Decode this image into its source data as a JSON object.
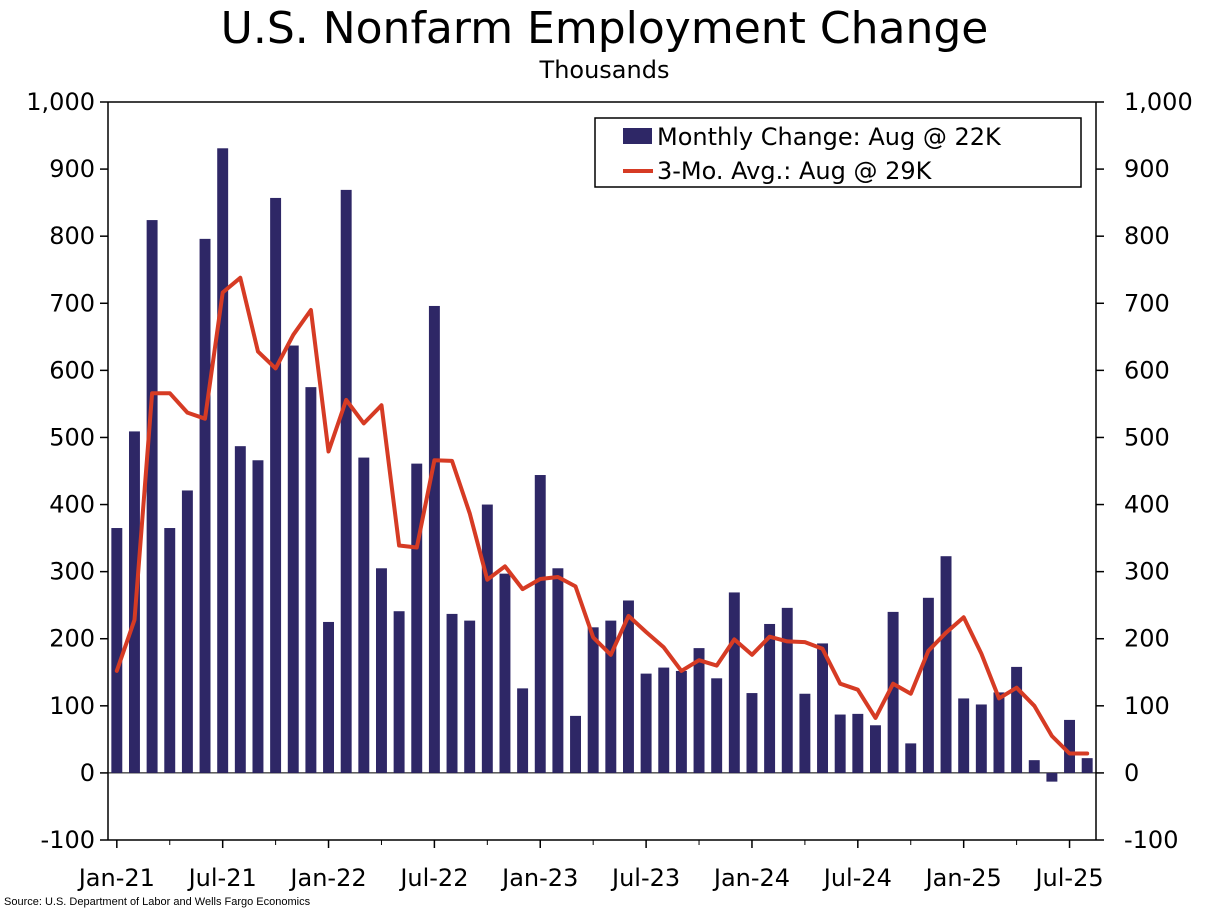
{
  "chart_data": {
    "type": "bar",
    "title": "U.S. Nonfarm Employment Change",
    "subtitle": "Thousands",
    "source": "Source: U.S. Department of Labor and Wells Fargo Economics",
    "ylim": [
      -100,
      1000
    ],
    "yticks": [
      "-100",
      "0",
      "100",
      "200",
      "300",
      "400",
      "500",
      "600",
      "700",
      "800",
      "900",
      "1,000"
    ],
    "ytick_values": [
      -100,
      0,
      100,
      200,
      300,
      400,
      500,
      600,
      700,
      800,
      900,
      1000
    ],
    "xtick_labels": [
      "Jan-21",
      "Jul-21",
      "Jan-22",
      "Jul-22",
      "Jan-23",
      "Jul-23",
      "Jan-24",
      "Jul-24",
      "Jan-25",
      "Jul-25"
    ],
    "xtick_categories": [
      "Jan-21",
      "Jul-21",
      "Jan-22",
      "Jul-22",
      "Jan-23",
      "Jul-23",
      "Jan-24",
      "Jul-24",
      "Jan-25",
      "Jul-25"
    ],
    "categories": [
      "Jan-21",
      "Feb-21",
      "Mar-21",
      "Apr-21",
      "May-21",
      "Jun-21",
      "Jul-21",
      "Aug-21",
      "Sep-21",
      "Oct-21",
      "Nov-21",
      "Dec-21",
      "Jan-22",
      "Feb-22",
      "Mar-22",
      "Apr-22",
      "May-22",
      "Jun-22",
      "Jul-22",
      "Aug-22",
      "Sep-22",
      "Oct-22",
      "Nov-22",
      "Dec-22",
      "Jan-23",
      "Feb-23",
      "Mar-23",
      "Apr-23",
      "May-23",
      "Jun-23",
      "Jul-23",
      "Aug-23",
      "Sep-23",
      "Oct-23",
      "Nov-23",
      "Dec-23",
      "Jan-24",
      "Feb-24",
      "Mar-24",
      "Apr-24",
      "May-24",
      "Jun-24",
      "Jul-24",
      "Aug-24",
      "Sep-24",
      "Oct-24",
      "Nov-24",
      "Dec-24",
      "Jan-25",
      "Feb-25",
      "Mar-25",
      "Apr-25",
      "May-25",
      "Jun-25",
      "Jul-25",
      "Aug-25"
    ],
    "series": [
      {
        "name": "Monthly Change: Aug @ 22K",
        "kind": "bar",
        "color": "#2e2766",
        "values": [
          365,
          509,
          824,
          365,
          421,
          796,
          931,
          487,
          466,
          857,
          637,
          575,
          225,
          869,
          470,
          305,
          241,
          461,
          696,
          237,
          227,
          400,
          297,
          126,
          444,
          305,
          85,
          217,
          227,
          257,
          148,
          157,
          152,
          186,
          141,
          269,
          119,
          222,
          246,
          118,
          193,
          87,
          88,
          71,
          240,
          44,
          261,
          323,
          111,
          102,
          120,
          158,
          19,
          -13,
          79,
          22
        ]
      },
      {
        "name": "3-Mo. Avg.: Aug @ 29K",
        "kind": "line",
        "color": "#d63b24",
        "values": [
          152,
          228,
          566,
          566,
          537,
          528,
          716,
          738,
          628,
          603,
          653,
          690,
          479,
          556,
          521,
          548,
          339,
          336,
          466,
          465,
          387,
          288,
          308,
          274,
          289,
          292,
          278,
          202,
          176,
          234,
          210,
          187,
          152,
          168,
          160,
          199,
          176,
          203,
          196,
          195,
          185,
          133,
          124,
          82,
          133,
          118,
          182,
          209,
          232,
          178,
          111,
          127,
          100,
          55,
          29,
          29
        ]
      }
    ]
  }
}
